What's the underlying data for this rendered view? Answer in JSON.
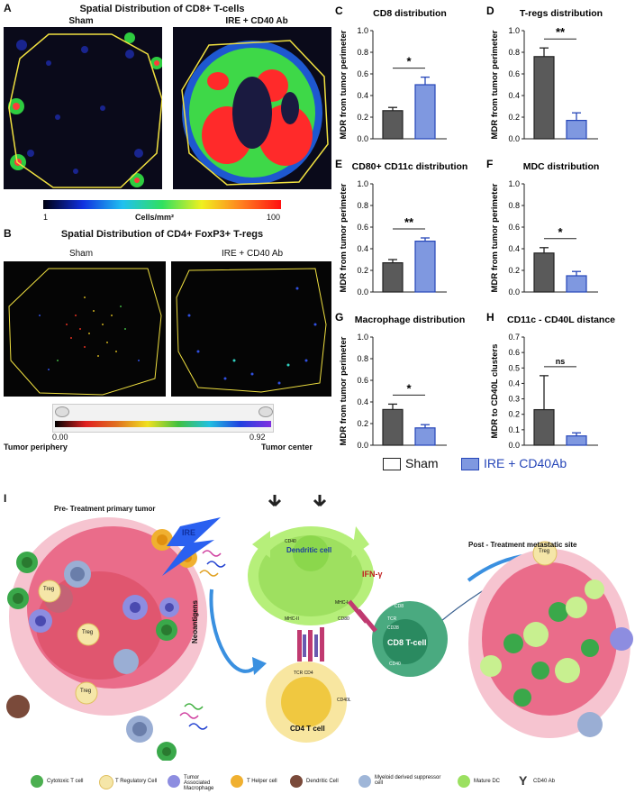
{
  "panel_a": {
    "label": "A",
    "title": "Spatial Distribution of CD8+ T-cells",
    "left_label": "Sham",
    "right_label": "IRE + CD40 Ab",
    "colorbar_min": "1",
    "colorbar_unit": "Cells/mm²",
    "colorbar_max": "100"
  },
  "panel_b": {
    "label": "B",
    "title": "Spatial Distribution of CD4+ FoxP3+ T-regs",
    "left_label": "Sham",
    "right_label": "IRE + CD40 Ab",
    "scale_min": "0.00",
    "scale_max": "0.92",
    "scale_left_label": "Tumor periphery",
    "scale_right_label": "Tumor center"
  },
  "legend": {
    "sham": "Sham",
    "ire": "IRE + CD40Ab",
    "sham_color": "#5a5a5a",
    "ire_color": "#7f98e0",
    "ire_edge": "#2646b8"
  },
  "chart_data": [
    {
      "panel": "C",
      "type": "bar",
      "title": "CD8 distribution",
      "ylabel": "MDR from tumor perimeter",
      "categories": [
        "Sham",
        "IRE + CD40Ab"
      ],
      "values": [
        0.26,
        0.5
      ],
      "errors": [
        0.03,
        0.07
      ],
      "ylim": [
        0,
        1.0
      ],
      "yticks": [
        "0.0",
        "0.2",
        "0.4",
        "0.6",
        "0.8",
        "1.0"
      ],
      "sig": "*"
    },
    {
      "panel": "D",
      "type": "bar",
      "title": "T-regs distribution",
      "ylabel": "MDR from tumor perimeter",
      "categories": [
        "Sham",
        "IRE + CD40Ab"
      ],
      "values": [
        0.76,
        0.17
      ],
      "errors": [
        0.08,
        0.07
      ],
      "ylim": [
        0,
        1.0
      ],
      "yticks": [
        "0.0",
        "0.2",
        "0.4",
        "0.6",
        "0.8",
        "1.0"
      ],
      "sig": "**"
    },
    {
      "panel": "E",
      "type": "bar",
      "title": "CD80+ CD11c distribution",
      "ylabel": "MDR from tumor perimeter",
      "categories": [
        "Sham",
        "IRE + CD40Ab"
      ],
      "values": [
        0.27,
        0.47
      ],
      "errors": [
        0.03,
        0.03
      ],
      "ylim": [
        0,
        1.0
      ],
      "yticks": [
        "0.0",
        "0.2",
        "0.4",
        "0.6",
        "0.8",
        "1.0"
      ],
      "sig": "**"
    },
    {
      "panel": "F",
      "type": "bar",
      "title": "MDC distribution",
      "ylabel": "MDR from tumor perimeter",
      "categories": [
        "Sham",
        "IRE + CD40Ab"
      ],
      "values": [
        0.36,
        0.15
      ],
      "errors": [
        0.05,
        0.04
      ],
      "ylim": [
        0,
        1.0
      ],
      "yticks": [
        "0.0",
        "0.2",
        "0.4",
        "0.6",
        "0.8",
        "1.0"
      ],
      "sig": "*"
    },
    {
      "panel": "G",
      "type": "bar",
      "title": "Macrophage distribution",
      "ylabel": "MDR from tumor perimeter",
      "categories": [
        "Sham",
        "IRE + CD40Ab"
      ],
      "values": [
        0.33,
        0.16
      ],
      "errors": [
        0.05,
        0.03
      ],
      "ylim": [
        0,
        1.0
      ],
      "yticks": [
        "0.0",
        "0.2",
        "0.4",
        "0.6",
        "0.8",
        "1.0"
      ],
      "sig": "*"
    },
    {
      "panel": "H",
      "type": "bar",
      "title": "CD11c - CD40L distance",
      "ylabel": "MDR to CD40L clusters",
      "categories": [
        "Sham",
        "IRE + CD40Ab"
      ],
      "values": [
        0.23,
        0.06
      ],
      "errors": [
        0.22,
        0.02
      ],
      "ylim": [
        0,
        0.7
      ],
      "yticks": [
        "0.0",
        "0.1",
        "0.2",
        "0.3",
        "0.4",
        "0.5",
        "0.6",
        "0.7"
      ],
      "sig": "ns"
    }
  ],
  "panel_i": {
    "label": "I",
    "pre_title": "Pre- Treatment primary tumor",
    "post_title": "Post - Treatment metastatic site",
    "ire": "IRE",
    "neoantigens": "Neoantigens",
    "dendritic": "Dendritic cell",
    "cd8": "CD8 T-cell",
    "cd4": "CD4 T cell",
    "ifn": "IFN-γ",
    "treg": "Treg",
    "mol": {
      "cd40": "CD40",
      "mhc2": "MHC-II",
      "mhc1": "MHC-I",
      "cd80": "CD80",
      "cd8": "CD8",
      "tcr": "TCR",
      "cd28": "CD28",
      "cd40b": "CD40",
      "tcrcd4": "TCR CD4",
      "cd40l": "CD40L"
    }
  },
  "caption": [
    {
      "label": "Cytotoxic T cell",
      "icon": "cytotoxic-t-cell-icon",
      "color": "#4caf50"
    },
    {
      "label": "T Regulatory Cell",
      "icon": "treg-icon",
      "color": "#f5e6a8"
    },
    {
      "label": "Tumor Associated Macrophage",
      "icon": "macrophage-icon",
      "color": "#8d8de0"
    },
    {
      "label": "T Helper cell",
      "icon": "t-helper-icon",
      "color": "#f0b030"
    },
    {
      "label": "Dendritic Cell",
      "icon": "dendritic-icon",
      "color": "#7a4a3a"
    },
    {
      "label": "Myeloid derived suppressor cell",
      "icon": "mdsc-icon",
      "color": "#9fb6d8"
    },
    {
      "label": "Mature DC",
      "icon": "mature-dc-icon",
      "color": "#9be060"
    },
    {
      "label": "CD40 Ab",
      "icon": "cd40-ab-icon",
      "color": "#333333"
    }
  ]
}
